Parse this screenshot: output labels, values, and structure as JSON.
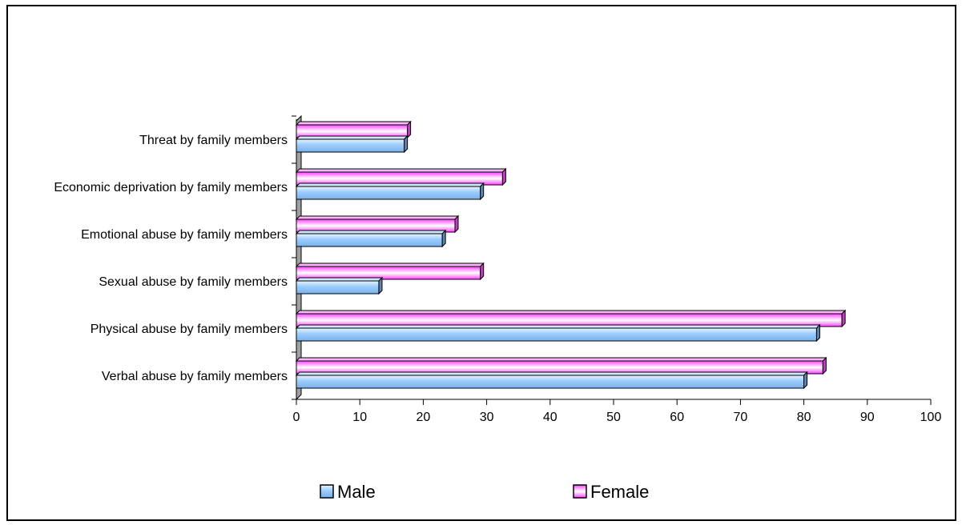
{
  "chart_data": {
    "type": "bar",
    "orientation": "horizontal",
    "categories": [
      "Verbal abuse by family members",
      "Physical abuse by family members",
      "Sexual abuse by family members",
      "Emotional abuse by family members",
      "Economic deprivation by family members",
      "Threat by family members"
    ],
    "series": [
      {
        "name": "Male",
        "values": [
          80,
          82,
          13,
          23,
          29,
          17
        ],
        "color": "#99ccff"
      },
      {
        "name": "Female",
        "values": [
          83,
          86,
          29,
          25,
          32.5,
          17.5
        ],
        "color": "#ff66ff"
      }
    ],
    "xlim": [
      0,
      100
    ],
    "xticks": [
      "0",
      "10",
      "20",
      "30",
      "40",
      "50",
      "60",
      "70",
      "80",
      "90",
      "100"
    ],
    "title": "",
    "xlabel": "",
    "ylabel": "",
    "grid": false,
    "legend_position": "bottom"
  }
}
